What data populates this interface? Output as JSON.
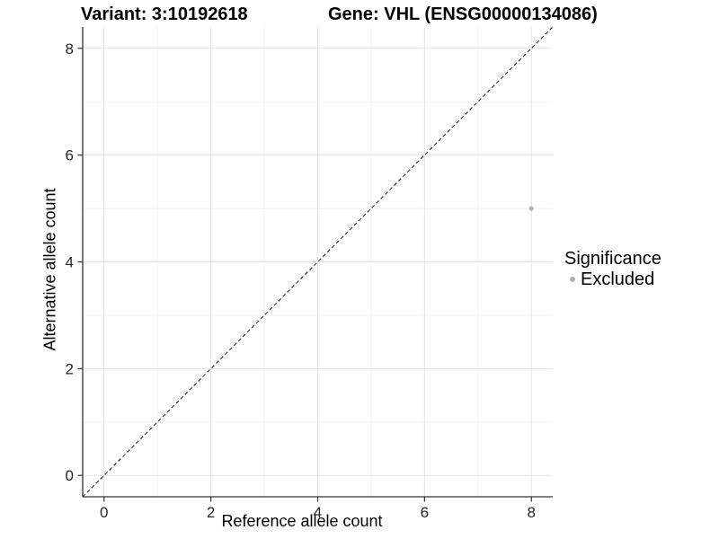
{
  "titles": {
    "variant": "Variant: 3:10192618",
    "gene": "Gene: VHL (ENSG00000134086)"
  },
  "chart_data": {
    "type": "scatter",
    "title_left": "Variant: 3:10192618",
    "title_right": "Gene: VHL (ENSG00000134086)",
    "xlabel": "Reference allele count",
    "ylabel": "Alternative allele count",
    "xlim": [
      -0.4,
      8.4
    ],
    "ylim": [
      -0.4,
      8.4
    ],
    "x_ticks": [
      0,
      2,
      4,
      6,
      8
    ],
    "y_ticks": [
      0,
      2,
      4,
      6,
      8
    ],
    "x_minor_ticks": [
      1,
      3,
      5,
      7
    ],
    "y_minor_ticks": [
      1,
      3,
      5,
      7
    ],
    "grid": true,
    "reference_line": {
      "slope": 1,
      "intercept": 0,
      "style": "dashed",
      "color": "#000000"
    },
    "series": [
      {
        "name": "Excluded",
        "color": "#b3b3b3",
        "point_radius": 2.6,
        "points": [
          {
            "x": 8,
            "y": 5
          }
        ]
      }
    ],
    "legend": {
      "title": "Significance",
      "position": "right",
      "items": [
        {
          "label": "Excluded",
          "color": "#b0b0b0"
        }
      ]
    }
  },
  "colors": {
    "background": "#ffffff",
    "axis_line": "#333333",
    "tick_mark": "#333333",
    "tick_label": "#262626",
    "grid_major": "#e5e5e5",
    "grid_minor": "#f2f2f2",
    "point": "#b3b3b3",
    "reference_line": "#000000"
  }
}
